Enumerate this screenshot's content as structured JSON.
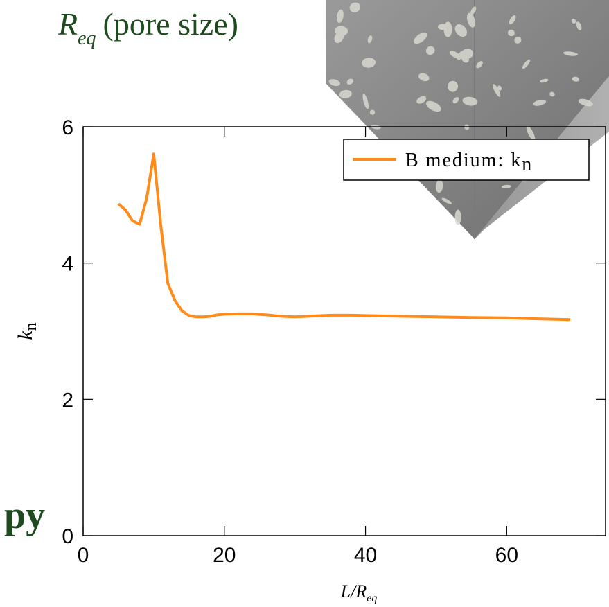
{
  "header": {
    "symbol": "R",
    "subscript": "eq",
    "text": "(pore size)"
  },
  "fragment": {
    "text": "py"
  },
  "chart_data": {
    "type": "line",
    "xlim": [
      0,
      74
    ],
    "ylim": [
      0,
      6
    ],
    "xticks": [
      0,
      20,
      40,
      60
    ],
    "yticks": [
      0,
      2,
      4,
      6
    ],
    "xlabel": {
      "main": "L/R",
      "sub": "eq"
    },
    "ylabel": {
      "main": "k",
      "sub": "n"
    },
    "legend_position": "top-right",
    "grid": false,
    "series": [
      {
        "name": "B medium: k",
        "name_sub": "n",
        "color": "#ff8c1a",
        "x": [
          5,
          6,
          7,
          8,
          9,
          10,
          11,
          12,
          13,
          14,
          15,
          16,
          17,
          18,
          19,
          20,
          22,
          24,
          26,
          28,
          30,
          32,
          35,
          38,
          40,
          45,
          50,
          55,
          60,
          65,
          69
        ],
        "y": [
          4.87,
          4.78,
          4.62,
          4.57,
          4.95,
          5.6,
          4.55,
          3.7,
          3.45,
          3.3,
          3.23,
          3.21,
          3.21,
          3.22,
          3.24,
          3.25,
          3.255,
          3.255,
          3.24,
          3.22,
          3.21,
          3.22,
          3.235,
          3.235,
          3.23,
          3.22,
          3.21,
          3.2,
          3.195,
          3.18,
          3.17
        ]
      }
    ]
  },
  "colors": {
    "title_green": "#1f4a1f",
    "line_orange": "#ff8c1a"
  }
}
